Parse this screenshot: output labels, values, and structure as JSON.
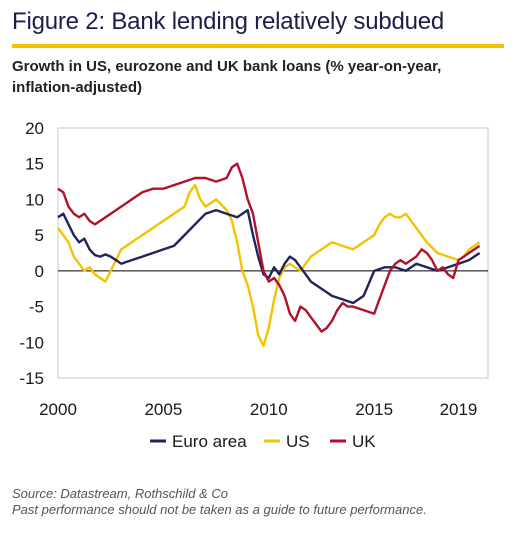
{
  "title": "Figure 2: Bank lending relatively subdued",
  "subtitle": "Growth in US, eurozone and UK bank loans (% year-on-year, inflation-adjusted)",
  "source": "Source: Datastream, Rothschild & Co",
  "disclaimer": "Past performance should not be taken as a guide to future performance.",
  "colors": {
    "accent": "#f2c300",
    "title": "#1b1f4a",
    "euro": "#22235a",
    "us": "#f2c300",
    "uk": "#b0122c"
  },
  "chart_data": {
    "type": "line",
    "title": "Figure 2: Bank lending relatively subdued",
    "subtitle": "Growth in US, eurozone and UK bank loans (% year-on-year, inflation-adjusted)",
    "xlabel": "",
    "ylabel": "",
    "xlim": [
      2000,
      2020.4
    ],
    "ylim": [
      -15,
      20
    ],
    "x_ticks": [
      2000,
      2005,
      2010,
      2015,
      2019
    ],
    "x_tick_labels": [
      "2000",
      "2005",
      "2010",
      "2015",
      "2019"
    ],
    "y_ticks": [
      -15,
      -10,
      -5,
      0,
      5,
      10,
      15,
      20
    ],
    "y_tick_labels": [
      "-15",
      "-10",
      "-5",
      "0",
      "5",
      "10",
      "15",
      "20"
    ],
    "grid": false,
    "legend_position": "bottom",
    "series": [
      {
        "name": "Euro area",
        "color": "#22235a",
        "x": [
          2000.0,
          2000.25,
          2000.5,
          2000.75,
          2001.0,
          2001.25,
          2001.5,
          2001.75,
          2002.0,
          2002.25,
          2002.5,
          2002.75,
          2003.0,
          2003.5,
          2004.0,
          2004.5,
          2005.0,
          2005.5,
          2006.0,
          2006.5,
          2007.0,
          2007.5,
          2008.0,
          2008.5,
          2009.0,
          2009.25,
          2009.5,
          2009.75,
          2010.0,
          2010.25,
          2010.5,
          2010.75,
          2011.0,
          2011.25,
          2011.5,
          2011.75,
          2012.0,
          2012.5,
          2013.0,
          2013.5,
          2014.0,
          2014.5,
          2015.0,
          2015.5,
          2016.0,
          2016.5,
          2017.0,
          2017.5,
          2018.0,
          2018.5,
          2019.0,
          2019.5,
          2020.0
        ],
        "y": [
          7.5,
          8.0,
          6.5,
          5.0,
          4.0,
          4.5,
          3.0,
          2.2,
          2.0,
          2.3,
          2.0,
          1.5,
          1.0,
          1.5,
          2.0,
          2.5,
          3.0,
          3.5,
          5.0,
          6.5,
          8.0,
          8.5,
          8.0,
          7.5,
          8.5,
          5.0,
          2.0,
          -0.5,
          -1.0,
          0.5,
          -0.5,
          1.0,
          2.0,
          1.5,
          0.5,
          -0.5,
          -1.5,
          -2.5,
          -3.5,
          -4.0,
          -4.5,
          -3.5,
          0.0,
          0.5,
          0.5,
          0.0,
          1.0,
          0.5,
          0.0,
          0.5,
          1.0,
          1.5,
          2.5
        ]
      },
      {
        "name": "US",
        "color": "#f2c300",
        "x": [
          2000.0,
          2000.25,
          2000.5,
          2000.75,
          2001.0,
          2001.25,
          2001.5,
          2001.75,
          2002.0,
          2002.25,
          2002.5,
          2002.75,
          2003.0,
          2003.25,
          2003.5,
          2003.75,
          2004.0,
          2004.5,
          2005.0,
          2005.5,
          2006.0,
          2006.25,
          2006.5,
          2006.75,
          2007.0,
          2007.5,
          2008.0,
          2008.25,
          2008.5,
          2008.75,
          2009.0,
          2009.25,
          2009.5,
          2009.75,
          2010.0,
          2010.25,
          2010.5,
          2010.75,
          2011.0,
          2011.25,
          2011.5,
          2011.75,
          2012.0,
          2012.5,
          2013.0,
          2013.5,
          2014.0,
          2014.5,
          2015.0,
          2015.25,
          2015.5,
          2015.75,
          2016.0,
          2016.25,
          2016.5,
          2016.75,
          2017.0,
          2017.5,
          2018.0,
          2018.5,
          2019.0,
          2019.25,
          2019.5,
          2019.75,
          2020.0
        ],
        "y": [
          6.0,
          5.0,
          4.0,
          2.0,
          1.0,
          0.0,
          0.5,
          -0.5,
          -1.0,
          -1.5,
          0.0,
          1.5,
          3.0,
          3.5,
          4.0,
          4.5,
          5.0,
          6.0,
          7.0,
          8.0,
          9.0,
          11.0,
          12.0,
          10.0,
          9.0,
          10.0,
          8.5,
          7.0,
          4.0,
          0.0,
          -2.0,
          -5.0,
          -9.0,
          -10.5,
          -8.0,
          -4.0,
          -1.0,
          0.5,
          1.0,
          0.5,
          0.0,
          1.0,
          2.0,
          3.0,
          4.0,
          3.5,
          3.0,
          4.0,
          5.0,
          6.5,
          7.5,
          8.0,
          7.5,
          7.5,
          8.0,
          7.0,
          6.0,
          4.0,
          2.5,
          2.0,
          1.5,
          2.0,
          3.0,
          3.5,
          4.0
        ]
      },
      {
        "name": "UK",
        "color": "#b0122c",
        "x": [
          2000.0,
          2000.25,
          2000.5,
          2000.75,
          2001.0,
          2001.25,
          2001.5,
          2001.75,
          2002.0,
          2002.5,
          2003.0,
          2003.5,
          2004.0,
          2004.5,
          2005.0,
          2005.5,
          2006.0,
          2006.5,
          2007.0,
          2007.5,
          2008.0,
          2008.25,
          2008.5,
          2008.75,
          2009.0,
          2009.25,
          2009.5,
          2009.75,
          2010.0,
          2010.25,
          2010.5,
          2010.75,
          2011.0,
          2011.25,
          2011.5,
          2011.75,
          2012.0,
          2012.25,
          2012.5,
          2012.75,
          2013.0,
          2013.25,
          2013.5,
          2013.75,
          2014.0,
          2014.5,
          2015.0,
          2015.25,
          2015.5,
          2015.75,
          2016.0,
          2016.25,
          2016.5,
          2016.75,
          2017.0,
          2017.25,
          2017.5,
          2017.75,
          2018.0,
          2018.25,
          2018.5,
          2018.75,
          2019.0,
          2019.25,
          2019.5,
          2019.75,
          2020.0
        ],
        "y": [
          11.5,
          11.0,
          9.0,
          8.0,
          7.5,
          8.0,
          7.0,
          6.5,
          7.0,
          8.0,
          9.0,
          10.0,
          11.0,
          11.5,
          11.5,
          12.0,
          12.5,
          13.0,
          13.0,
          12.5,
          13.0,
          14.5,
          15.0,
          13.0,
          10.0,
          8.0,
          4.0,
          0.0,
          -1.5,
          -1.0,
          -2.0,
          -3.5,
          -6.0,
          -7.0,
          -5.0,
          -5.5,
          -6.5,
          -7.5,
          -8.5,
          -8.0,
          -7.0,
          -5.5,
          -4.5,
          -5.0,
          -5.0,
          -5.5,
          -6.0,
          -4.0,
          -2.0,
          0.0,
          1.0,
          1.5,
          1.0,
          1.5,
          2.0,
          3.0,
          2.5,
          1.5,
          0.0,
          0.5,
          -0.5,
          -1.0,
          1.5,
          2.0,
          2.5,
          3.0,
          3.5
        ]
      }
    ]
  }
}
